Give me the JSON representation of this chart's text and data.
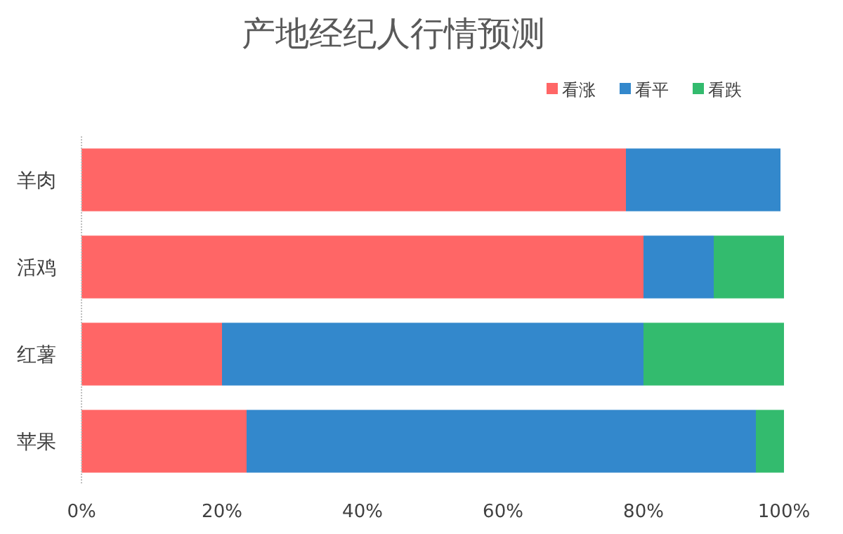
{
  "chart_data": {
    "type": "bar",
    "orientation": "horizontal",
    "stacked": true,
    "title": "产地经纪人行情预测",
    "categories": [
      "羊肉",
      "活鸡",
      "红薯",
      "苹果"
    ],
    "series": [
      {
        "name": "看涨",
        "color": "#ff6666",
        "values": [
          77.5,
          80,
          20,
          23.5
        ]
      },
      {
        "name": "看平",
        "color": "#3388cc",
        "values": [
          22,
          10,
          60,
          72.5
        ]
      },
      {
        "name": "看跌",
        "color": "#33bb6e",
        "values": [
          0,
          10,
          20,
          4
        ]
      }
    ],
    "xlim": [
      0,
      100
    ],
    "xticks": [
      {
        "value": 0,
        "label": "0%"
      },
      {
        "value": 20,
        "label": "20%"
      },
      {
        "value": 40,
        "label": "40%"
      },
      {
        "value": 60,
        "label": "60%"
      },
      {
        "value": 80,
        "label": "80%"
      },
      {
        "value": 100,
        "label": "100%"
      }
    ],
    "legend": "top right"
  }
}
